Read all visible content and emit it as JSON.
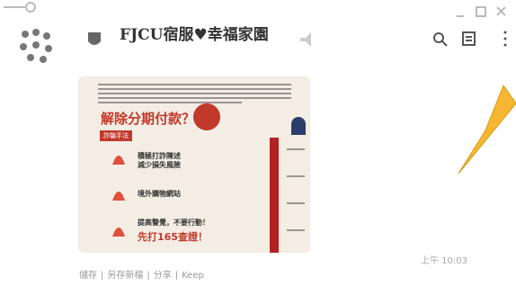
{
  "header": {
    "title": "FJCU宿服♥幸福家園"
  },
  "message": {
    "image": {
      "headline": "解除分期付款？",
      "badge": "詐騙手法",
      "items": [
        "積極打詐陳述",
        "減少損失風險",
        "境外購物網站",
        "提高警覺，不要行動！",
        "先打165查證！"
      ]
    },
    "time": "上午 10:03"
  },
  "actions": [
    "儲存",
    "另存新檔",
    "分享",
    "Keep"
  ]
}
